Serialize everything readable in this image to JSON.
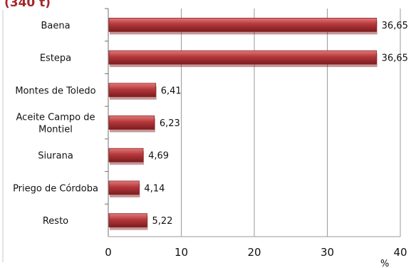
{
  "chart_data": {
    "type": "bar",
    "orientation": "horizontal",
    "title": "(340 t)",
    "categories": [
      "Baena",
      "Estepa",
      "Montes de Toledo",
      "Aceite Campo de Montiel",
      "Siurana",
      "Priego de Córdoba",
      "Resto"
    ],
    "category_label_lines": [
      [
        "Baena"
      ],
      [
        "Estepa"
      ],
      [
        "Montes de Toledo"
      ],
      [
        "Aceite Campo de",
        "Montiel"
      ],
      [
        "Siurana"
      ],
      [
        "Priego de Córdoba"
      ],
      [
        "Resto"
      ]
    ],
    "values": [
      36.65,
      36.65,
      6.41,
      6.23,
      4.69,
      4.14,
      5.22
    ],
    "value_labels": [
      "36,65",
      "36,65",
      "6,41",
      "6,23",
      "4,69",
      "4,14",
      "5,22"
    ],
    "xlabel": "%",
    "ylabel": "",
    "xlim": [
      0,
      40
    ],
    "xticks": [
      0,
      10,
      20,
      30,
      40
    ],
    "grid": "vertical",
    "legend": "none",
    "colors": {
      "bar_fill": "#b5373a",
      "bar_highlight": "#e07a7a",
      "bar_shadow": "#7a1d20",
      "bar_edge": "#8e2326",
      "title": "#a3272b",
      "grid": "#9a9a9a",
      "axis": "#6f6f6f",
      "text": "#111111"
    }
  }
}
